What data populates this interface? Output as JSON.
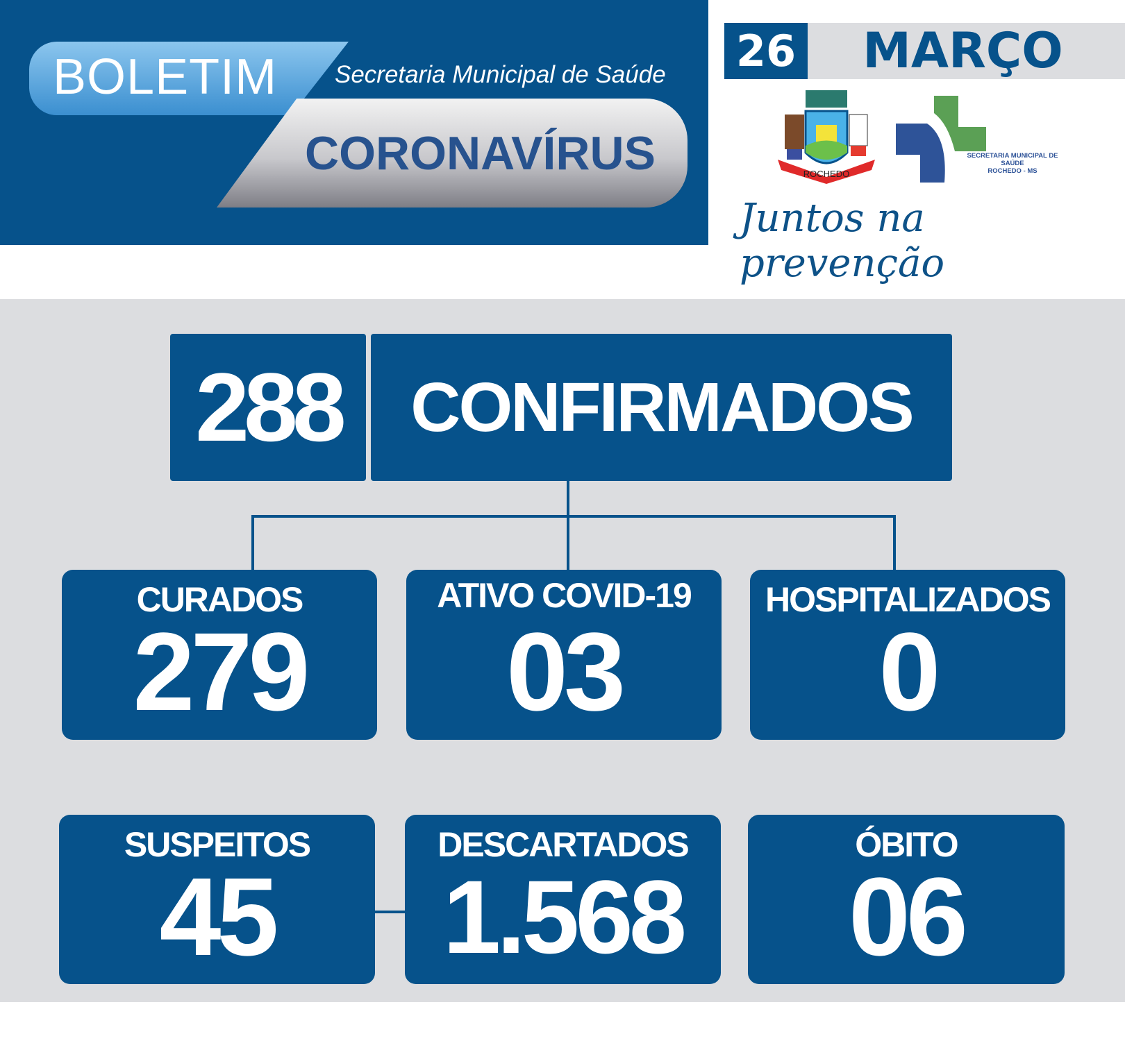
{
  "header": {
    "boletim": "BOLETIM",
    "secretaria": "Secretaria Municipal de Saúde",
    "coronavirus": "CORONAVÍRUS"
  },
  "date": {
    "day": "26",
    "month": "MARÇO"
  },
  "logos": {
    "brasao_text": "ROCHEDO",
    "secretaria_logo_line1": "SECRETARIA MUNICIPAL DE SAÚDE",
    "secretaria_logo_line2": "ROCHEDO - MS"
  },
  "slogan": "Juntos na prevenção",
  "colors": {
    "primary": "#06528b",
    "background_grey": "#dcdde0",
    "green": "#5ba055",
    "cross_blue": "#2e5398"
  },
  "confirmed": {
    "value": "288",
    "label": "CONFIRMADOS"
  },
  "stats": [
    {
      "label": "CURADOS",
      "value": "279"
    },
    {
      "label": "ATIVO COVID-19",
      "value": "03"
    },
    {
      "label": "HOSPITALIZADOS",
      "value": "0"
    },
    {
      "label": "SUSPEITOS",
      "value": "45"
    },
    {
      "label": "DESCARTADOS",
      "value": "1.568"
    },
    {
      "label": "ÓBITO",
      "value": "06"
    }
  ]
}
